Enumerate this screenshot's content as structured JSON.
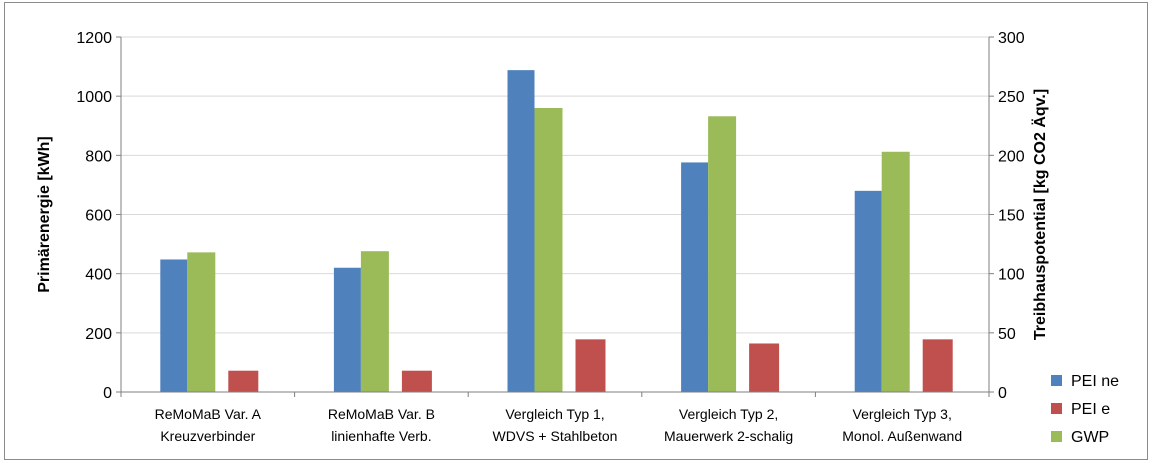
{
  "chart_data": {
    "type": "bar",
    "categories": [
      [
        "ReMoMaB Var. A",
        "Kreuzverbinder"
      ],
      [
        "ReMoMaB Var. B",
        "linienhafte Verb."
      ],
      [
        "Vergleich Typ 1,",
        "WDVS + Stahlbeton"
      ],
      [
        "Vergleich Typ 2,",
        "Mauerwerk 2-schalig"
      ],
      [
        "Vergleich Typ 3,",
        "Monol.  Außenwand"
      ]
    ],
    "ylabel": "Primärenergie [kWh]",
    "y2label": "Treibhauspotential [kg CO2 Äqv.]",
    "ylim": [
      0,
      1200
    ],
    "y2lim": [
      0,
      300
    ],
    "yticks": [
      "0",
      "200",
      "400",
      "600",
      "800",
      "1000",
      "1200"
    ],
    "y2ticks": [
      "0",
      "50",
      "100",
      "150",
      "200",
      "250",
      "300"
    ],
    "grid": "horizontal",
    "legend_position": "bottom-right",
    "series": [
      {
        "name": "PEI ne",
        "axis": "left",
        "color": "#4f81bd",
        "values": [
          448,
          420,
          1088,
          776,
          680
        ]
      },
      {
        "name": "PEI e",
        "axis": "left",
        "color": "#c0504d",
        "values": [
          72,
          72,
          178,
          164,
          178
        ]
      },
      {
        "name": "GWP",
        "axis": "right",
        "color": "#9bbb59",
        "values": [
          118,
          119,
          240,
          233,
          203
        ]
      }
    ]
  }
}
